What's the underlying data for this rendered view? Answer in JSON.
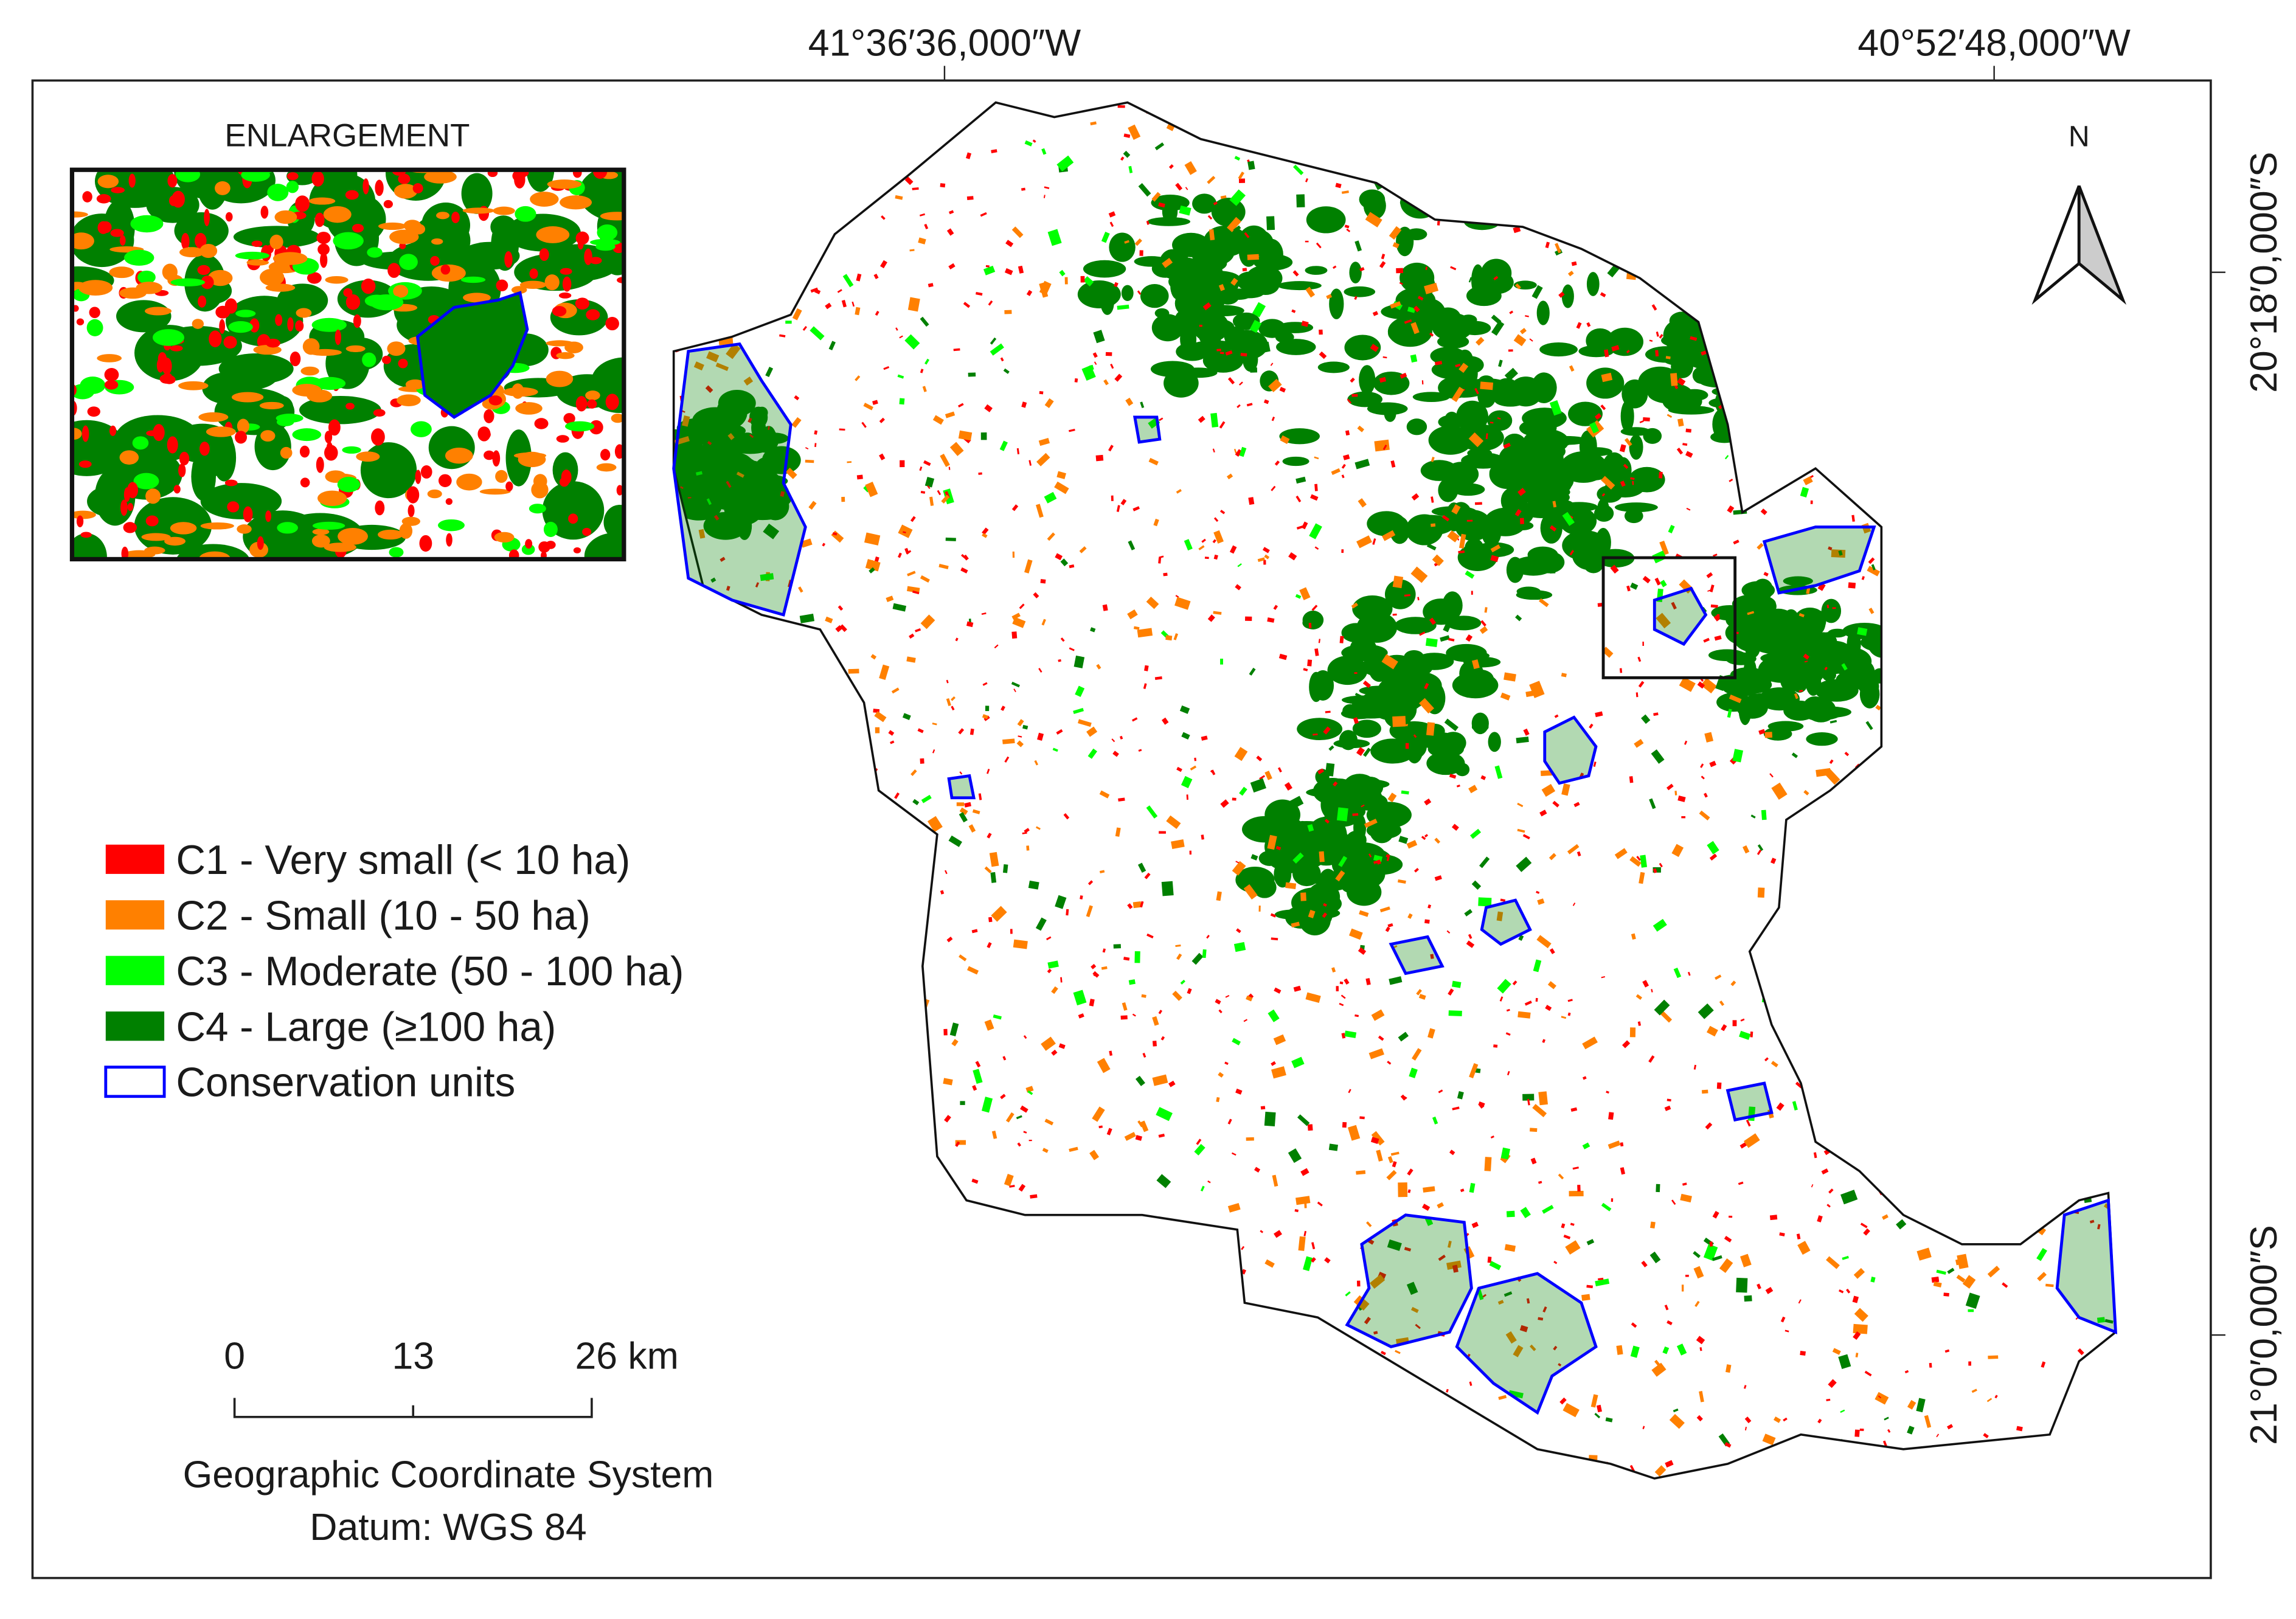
{
  "map": {
    "coordinates": {
      "top": [
        "41°36′36,000″W",
        "40°52′48,000″W"
      ],
      "right": [
        "20°18′0,000″S",
        "21°0′0,000″S"
      ]
    },
    "north_arrow": "N",
    "inset_title": "ENLARGEMENT",
    "legend": [
      {
        "label": "C1 - Very small (< 10 ha)",
        "color": "#ff0000"
      },
      {
        "label": "C2 - Small (10 - 50 ha)",
        "color": "#ff8000"
      },
      {
        "label": "C3 - Moderate (50 - 100 ha)",
        "color": "#00ff00"
      },
      {
        "label": "C4 - Large (≥100 ha)",
        "color": "#008000"
      },
      {
        "label": "Conservation units",
        "color": "#0000ff"
      }
    ],
    "scale_bar": [
      "0",
      "13",
      "26 km"
    ],
    "crs": [
      "Geographic Coordinate System",
      "Datum: WGS 84"
    ]
  }
}
